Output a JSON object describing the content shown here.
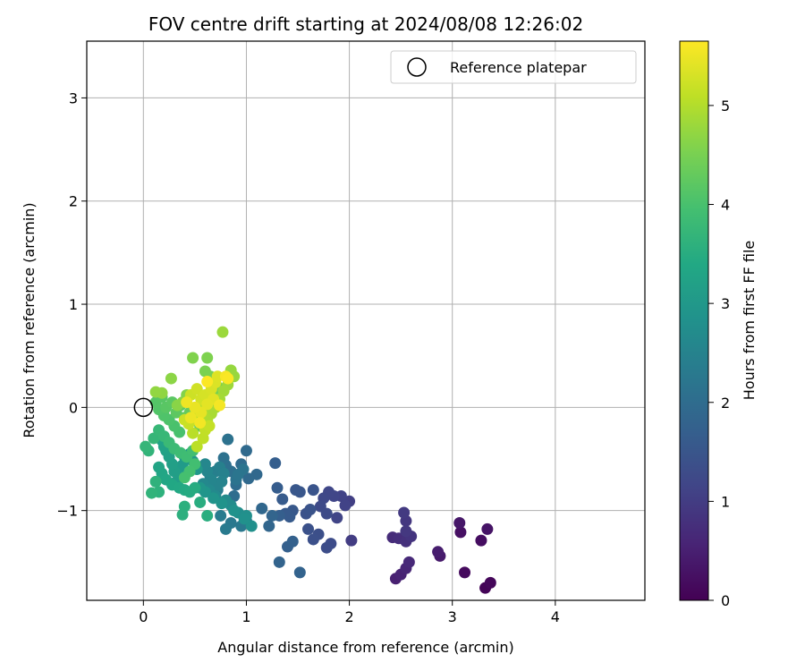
{
  "chart_data": {
    "type": "scatter",
    "title": "FOV centre drift starting at 2024/08/08 12:26:02",
    "xlabel": "Angular distance from reference (arcmin)",
    "ylabel": "Rotation from reference (arcmin)",
    "xlim": [
      -0.55,
      4.87
    ],
    "ylim": [
      -1.87,
      3.55
    ],
    "xticks": [
      0,
      1,
      2,
      3,
      4
    ],
    "yticks": [
      -1,
      0,
      1,
      2,
      3
    ],
    "xtick_labels": [
      "0",
      "1",
      "2",
      "3",
      "4"
    ],
    "ytick_labels": [
      "−1",
      "0",
      "1",
      "2",
      "3"
    ],
    "grid": true,
    "legend": {
      "placement": "upper-right",
      "label": "Reference platepar"
    },
    "reference_point": {
      "x": 0,
      "y": 0,
      "label": "Reference platepar"
    },
    "colorbar": {
      "label": "Hours from first FF file",
      "min": 0,
      "max": 5.65,
      "ticks": [
        0,
        1,
        2,
        3,
        4,
        5
      ],
      "tick_labels": [
        "0",
        "1",
        "2",
        "3",
        "4",
        "5"
      ],
      "colormap": "viridis"
    },
    "points": [
      [
        3.32,
        -1.75,
        0.05
      ],
      [
        3.37,
        -1.7,
        0.1
      ],
      [
        3.12,
        -1.6,
        0.15
      ],
      [
        3.28,
        -1.29,
        0.2
      ],
      [
        3.08,
        -1.21,
        0.25
      ],
      [
        3.34,
        -1.18,
        0.3
      ],
      [
        3.07,
        -1.12,
        0.35
      ],
      [
        2.88,
        -1.44,
        0.4
      ],
      [
        2.86,
        -1.4,
        0.45
      ],
      [
        2.45,
        -1.66,
        0.5
      ],
      [
        2.5,
        -1.62,
        0.55
      ],
      [
        2.55,
        -1.56,
        0.6
      ],
      [
        2.58,
        -1.5,
        0.65
      ],
      [
        2.42,
        -1.26,
        0.7
      ],
      [
        2.48,
        -1.27,
        0.75
      ],
      [
        2.55,
        -1.3,
        0.8
      ],
      [
        2.6,
        -1.25,
        0.85
      ],
      [
        2.55,
        -1.1,
        0.9
      ],
      [
        2.55,
        -1.2,
        0.92
      ],
      [
        2.53,
        -1.02,
        0.95
      ],
      [
        2.02,
        -1.29,
        1.0
      ],
      [
        2.0,
        -0.91,
        1.05
      ],
      [
        1.92,
        -0.86,
        1.1
      ],
      [
        1.96,
        -0.95,
        1.12
      ],
      [
        1.88,
        -1.07,
        1.15
      ],
      [
        1.85,
        -0.86,
        1.18
      ],
      [
        1.8,
        -0.82,
        1.2
      ],
      [
        1.75,
        -0.88,
        1.22
      ],
      [
        1.72,
        -0.96,
        1.25
      ],
      [
        1.78,
        -1.03,
        1.27
      ],
      [
        1.82,
        -1.32,
        1.3
      ],
      [
        1.78,
        -1.36,
        1.32
      ],
      [
        1.7,
        -1.23,
        1.35
      ],
      [
        1.65,
        -1.28,
        1.38
      ],
      [
        1.6,
        -1.18,
        1.4
      ],
      [
        1.58,
        -1.03,
        1.42
      ],
      [
        1.62,
        -0.99,
        1.45
      ],
      [
        1.65,
        -0.8,
        1.47
      ],
      [
        1.52,
        -0.82,
        1.5
      ],
      [
        1.48,
        -0.8,
        1.52
      ],
      [
        1.45,
        -1.0,
        1.55
      ],
      [
        1.42,
        -1.06,
        1.58
      ],
      [
        1.38,
        -1.03,
        1.6
      ],
      [
        1.35,
        -0.89,
        1.62
      ],
      [
        1.3,
        -0.78,
        1.65
      ],
      [
        1.28,
        -0.54,
        1.68
      ],
      [
        1.32,
        -1.05,
        1.7
      ],
      [
        1.4,
        -1.35,
        1.72
      ],
      [
        1.45,
        -1.3,
        1.75
      ],
      [
        1.52,
        -1.6,
        1.78
      ],
      [
        1.32,
        -1.5,
        1.8
      ],
      [
        1.25,
        -1.05,
        1.82
      ],
      [
        1.22,
        -1.15,
        1.85
      ],
      [
        1.15,
        -0.98,
        1.88
      ],
      [
        1.1,
        -0.65,
        1.9
      ],
      [
        1.02,
        -0.69,
        1.92
      ],
      [
        1.0,
        -0.42,
        1.95
      ],
      [
        0.95,
        -0.55,
        1.97
      ],
      [
        0.9,
        -0.75,
        2.0
      ],
      [
        0.88,
        -0.86,
        2.02
      ],
      [
        0.85,
        -0.62,
        2.05
      ],
      [
        0.8,
        -0.56,
        2.07
      ],
      [
        0.78,
        -0.49,
        2.1
      ],
      [
        0.82,
        -0.31,
        2.12
      ],
      [
        0.9,
        -0.7,
        2.15
      ],
      [
        0.97,
        -0.6,
        2.17
      ],
      [
        0.92,
        -0.65,
        2.2
      ],
      [
        1.0,
        -1.1,
        2.22
      ],
      [
        0.95,
        -1.15,
        2.25
      ],
      [
        0.85,
        -1.12,
        2.27
      ],
      [
        0.8,
        -1.18,
        2.3
      ],
      [
        0.75,
        -1.05,
        2.32
      ],
      [
        0.72,
        -0.8,
        2.35
      ],
      [
        0.68,
        -0.73,
        2.37
      ],
      [
        0.65,
        -0.68,
        2.4
      ],
      [
        0.7,
        -0.62,
        2.42
      ],
      [
        0.74,
        -0.58,
        2.45
      ],
      [
        0.78,
        -0.64,
        2.47
      ],
      [
        0.76,
        -0.72,
        2.5
      ],
      [
        0.72,
        -0.76,
        2.52
      ],
      [
        0.66,
        -0.7,
        2.55
      ],
      [
        0.62,
        -0.62,
        2.57
      ],
      [
        0.6,
        -0.55,
        2.6
      ],
      [
        0.58,
        -0.74,
        2.62
      ],
      [
        0.64,
        -0.8,
        2.65
      ],
      [
        0.7,
        -0.86,
        2.67
      ],
      [
        0.8,
        -0.9,
        2.7
      ],
      [
        0.85,
        -0.95,
        2.72
      ],
      [
        0.92,
        -1.02,
        2.75
      ],
      [
        1.0,
        -1.05,
        2.77
      ],
      [
        1.05,
        -1.15,
        2.8
      ],
      [
        0.98,
        -1.08,
        2.82
      ],
      [
        0.88,
        -1.0,
        2.85
      ],
      [
        0.76,
        -0.93,
        2.87
      ],
      [
        0.68,
        -0.88,
        2.9
      ],
      [
        0.6,
        -0.82,
        2.92
      ],
      [
        0.55,
        -0.78,
        2.95
      ],
      [
        0.52,
        -0.6,
        2.97
      ],
      [
        0.48,
        -0.52,
        3.0
      ],
      [
        0.45,
        -0.45,
        3.02
      ],
      [
        0.4,
        -0.48,
        3.05
      ],
      [
        0.38,
        -0.56,
        3.07
      ],
      [
        0.35,
        -0.65,
        3.1
      ],
      [
        0.32,
        -0.72,
        3.12
      ],
      [
        0.3,
        -0.62,
        3.15
      ],
      [
        0.28,
        -0.55,
        3.17
      ],
      [
        0.25,
        -0.48,
        3.2
      ],
      [
        0.22,
        -0.42,
        3.22
      ],
      [
        0.2,
        -0.38,
        3.25
      ],
      [
        0.18,
        -0.32,
        3.27
      ],
      [
        0.15,
        -0.58,
        3.3
      ],
      [
        0.18,
        -0.64,
        3.32
      ],
      [
        0.22,
        -0.7,
        3.35
      ],
      [
        0.28,
        -0.75,
        3.37
      ],
      [
        0.35,
        -0.78,
        3.4
      ],
      [
        0.4,
        -0.8,
        3.42
      ],
      [
        0.45,
        -0.82,
        3.45
      ],
      [
        0.5,
        -0.78,
        3.47
      ],
      [
        0.55,
        -0.92,
        3.5
      ],
      [
        0.62,
        -1.05,
        3.52
      ],
      [
        0.4,
        -0.96,
        3.55
      ],
      [
        0.38,
        -1.04,
        3.57
      ],
      [
        0.15,
        -0.82,
        3.6
      ],
      [
        0.12,
        -0.72,
        3.62
      ],
      [
        0.08,
        -0.83,
        3.65
      ],
      [
        0.05,
        -0.42,
        3.67
      ],
      [
        0.02,
        -0.38,
        3.7
      ],
      [
        0.1,
        -0.3,
        3.72
      ],
      [
        0.15,
        -0.22,
        3.75
      ],
      [
        0.2,
        -0.28,
        3.77
      ],
      [
        0.25,
        -0.34,
        3.8
      ],
      [
        0.3,
        -0.4,
        3.82
      ],
      [
        0.36,
        -0.44,
        3.85
      ],
      [
        0.42,
        -0.48,
        3.87
      ],
      [
        0.48,
        -0.42,
        3.9
      ],
      [
        0.5,
        -0.55,
        3.92
      ],
      [
        0.45,
        -0.62,
        3.95
      ],
      [
        0.4,
        -0.68,
        3.97
      ],
      [
        0.35,
        -0.24,
        4.0
      ],
      [
        0.3,
        -0.18,
        4.02
      ],
      [
        0.25,
        -0.12,
        4.05
      ],
      [
        0.2,
        -0.08,
        4.07
      ],
      [
        0.15,
        -0.02,
        4.1
      ],
      [
        0.12,
        0.05,
        4.12
      ],
      [
        0.18,
        0.1,
        4.15
      ],
      [
        0.22,
        0.0,
        4.17
      ],
      [
        0.28,
        0.05,
        4.2
      ],
      [
        0.32,
        -0.05,
        4.22
      ],
      [
        0.36,
        0.02,
        4.25
      ],
      [
        0.4,
        -0.1,
        4.27
      ],
      [
        0.45,
        -0.05,
        4.3
      ],
      [
        0.5,
        -0.12,
        4.32
      ],
      [
        0.55,
        -0.18,
        4.35
      ],
      [
        0.6,
        -0.1,
        4.37
      ],
      [
        0.64,
        -0.02,
        4.4
      ],
      [
        0.68,
        0.05,
        4.42
      ],
      [
        0.7,
        0.12,
        4.45
      ],
      [
        0.72,
        0.2,
        4.47
      ],
      [
        0.65,
        0.3,
        4.5
      ],
      [
        0.6,
        0.35,
        4.52
      ],
      [
        0.62,
        0.48,
        4.55
      ],
      [
        0.48,
        0.48,
        4.57
      ],
      [
        0.42,
        0.12,
        4.6
      ],
      [
        0.38,
        0.05,
        4.62
      ],
      [
        0.33,
        0.02,
        4.65
      ],
      [
        0.27,
        0.28,
        4.67
      ],
      [
        0.18,
        0.14,
        4.7
      ],
      [
        0.12,
        0.15,
        4.72
      ],
      [
        0.85,
        0.36,
        4.75
      ],
      [
        0.88,
        0.3,
        4.77
      ],
      [
        0.77,
        0.73,
        4.8
      ],
      [
        0.82,
        0.22,
        4.82
      ],
      [
        0.78,
        0.16,
        4.85
      ],
      [
        0.74,
        0.08,
        4.87
      ],
      [
        0.7,
        0.0,
        4.9
      ],
      [
        0.66,
        -0.06,
        4.92
      ],
      [
        0.62,
        -0.12,
        4.95
      ],
      [
        0.58,
        -0.08,
        4.97
      ],
      [
        0.54,
        -0.02,
        5.0
      ],
      [
        0.5,
        -0.08,
        5.02
      ],
      [
        0.48,
        -0.25,
        5.05
      ],
      [
        0.52,
        -0.38,
        5.07
      ],
      [
        0.58,
        -0.3,
        5.1
      ],
      [
        0.6,
        -0.22,
        5.12
      ],
      [
        0.64,
        -0.18,
        5.15
      ],
      [
        0.44,
        -0.16,
        5.17
      ],
      [
        0.4,
        -0.12,
        5.2
      ],
      [
        0.46,
        0.12,
        5.22
      ],
      [
        0.52,
        0.18,
        5.25
      ],
      [
        0.56,
        0.08,
        5.27
      ],
      [
        0.6,
        0.12,
        5.3
      ],
      [
        0.66,
        0.18,
        5.32
      ],
      [
        0.7,
        0.24,
        5.35
      ],
      [
        0.72,
        0.3,
        5.37
      ],
      [
        0.68,
        0.08,
        5.4
      ],
      [
        0.62,
        0.03,
        5.42
      ],
      [
        0.56,
        -0.05,
        5.45
      ],
      [
        0.5,
        0.0,
        5.47
      ],
      [
        0.46,
        -0.1,
        5.5
      ],
      [
        0.42,
        0.05,
        5.52
      ],
      [
        0.55,
        -0.15,
        5.55
      ],
      [
        0.74,
        0.02,
        5.57
      ],
      [
        0.8,
        0.3,
        5.6
      ],
      [
        0.82,
        0.28,
        5.62
      ],
      [
        0.62,
        0.25,
        5.64
      ]
    ]
  }
}
